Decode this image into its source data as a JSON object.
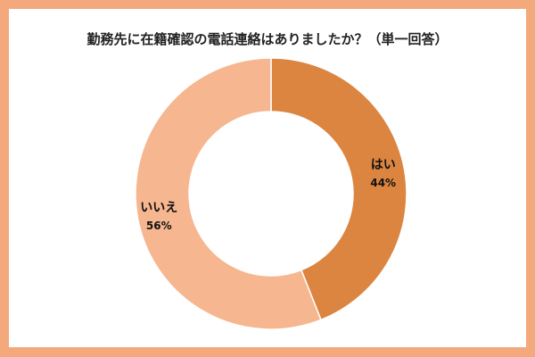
{
  "chart_data": {
    "type": "pie",
    "variant": "donut",
    "title": "勤務先に在籍確認の電話連絡はありましたか？（単一回答）",
    "slices": [
      {
        "label": "はい",
        "value": 44,
        "value_label": "44%",
        "color": "#db8540"
      },
      {
        "label": "いいえ",
        "value": 56,
        "value_label": "56%",
        "color": "#f6b68f"
      }
    ],
    "start": "top",
    "direction": "clockwise",
    "legend": "none"
  },
  "colors": {
    "border": "#f3a97c",
    "background": "#ffffff"
  }
}
